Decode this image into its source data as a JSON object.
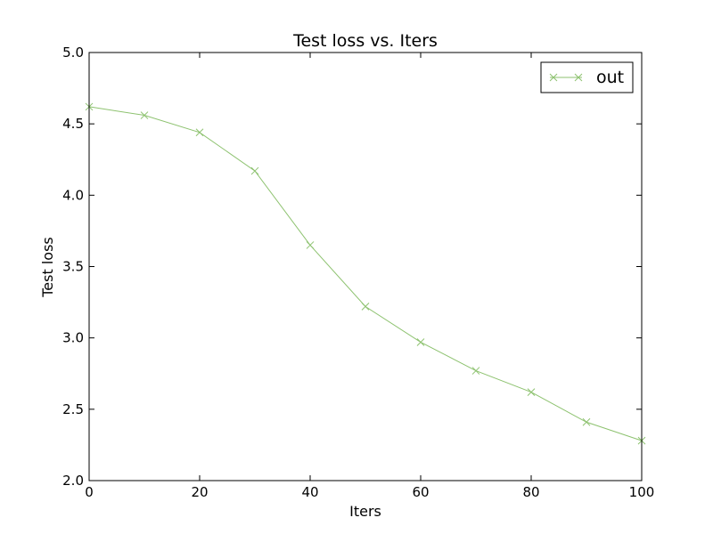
{
  "chart_data": {
    "type": "line",
    "title": "Test loss  vs. Iters",
    "xlabel": "Iters",
    "ylabel": "Test loss",
    "xlim": [
      0,
      100
    ],
    "ylim": [
      2.0,
      5.0
    ],
    "xticks": [
      0,
      20,
      40,
      60,
      80,
      100
    ],
    "yticks": [
      2.0,
      2.5,
      3.0,
      3.5,
      4.0,
      4.5,
      5.0
    ],
    "xtick_labels": [
      "0",
      "20",
      "40",
      "60",
      "80",
      "100"
    ],
    "ytick_labels": [
      "2.0",
      "2.5",
      "3.0",
      "3.5",
      "4.0",
      "4.5",
      "5.0"
    ],
    "grid": false,
    "legend_position": "top-right",
    "series": [
      {
        "name": "out",
        "color": "#8dc26f",
        "marker": "x",
        "x": [
          0,
          10,
          20,
          30,
          40,
          50,
          60,
          70,
          80,
          90,
          100
        ],
        "y": [
          4.62,
          4.56,
          4.44,
          4.17,
          3.65,
          3.22,
          2.97,
          2.77,
          2.62,
          2.41,
          2.28
        ]
      }
    ]
  }
}
